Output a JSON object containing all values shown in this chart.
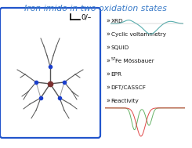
{
  "title": "Iron imido in two oxidation states",
  "title_color": "#3a7bc8",
  "title_fontsize": 7.8,
  "bg_color": "#ffffff",
  "box_color": "#2255cc",
  "redox_label": "0/–",
  "bullet_items": [
    "XRD",
    "Cyclic voltammetry",
    "SQUID",
    "Fe Mössbauer",
    "EPR",
    "DFT/CASSCF",
    "Reactivity"
  ],
  "bullet_color": "#111111",
  "bullet_fontsize": 5.2,
  "cv_color": "#5aafaf",
  "mossbauer_color1": "#55aa55",
  "mossbauer_color2": "#dd3333",
  "reactivity_color": "#ee8888",
  "fe_color": "#7a3030",
  "n_color": "#1a3ecc",
  "bond_color": "#555555"
}
